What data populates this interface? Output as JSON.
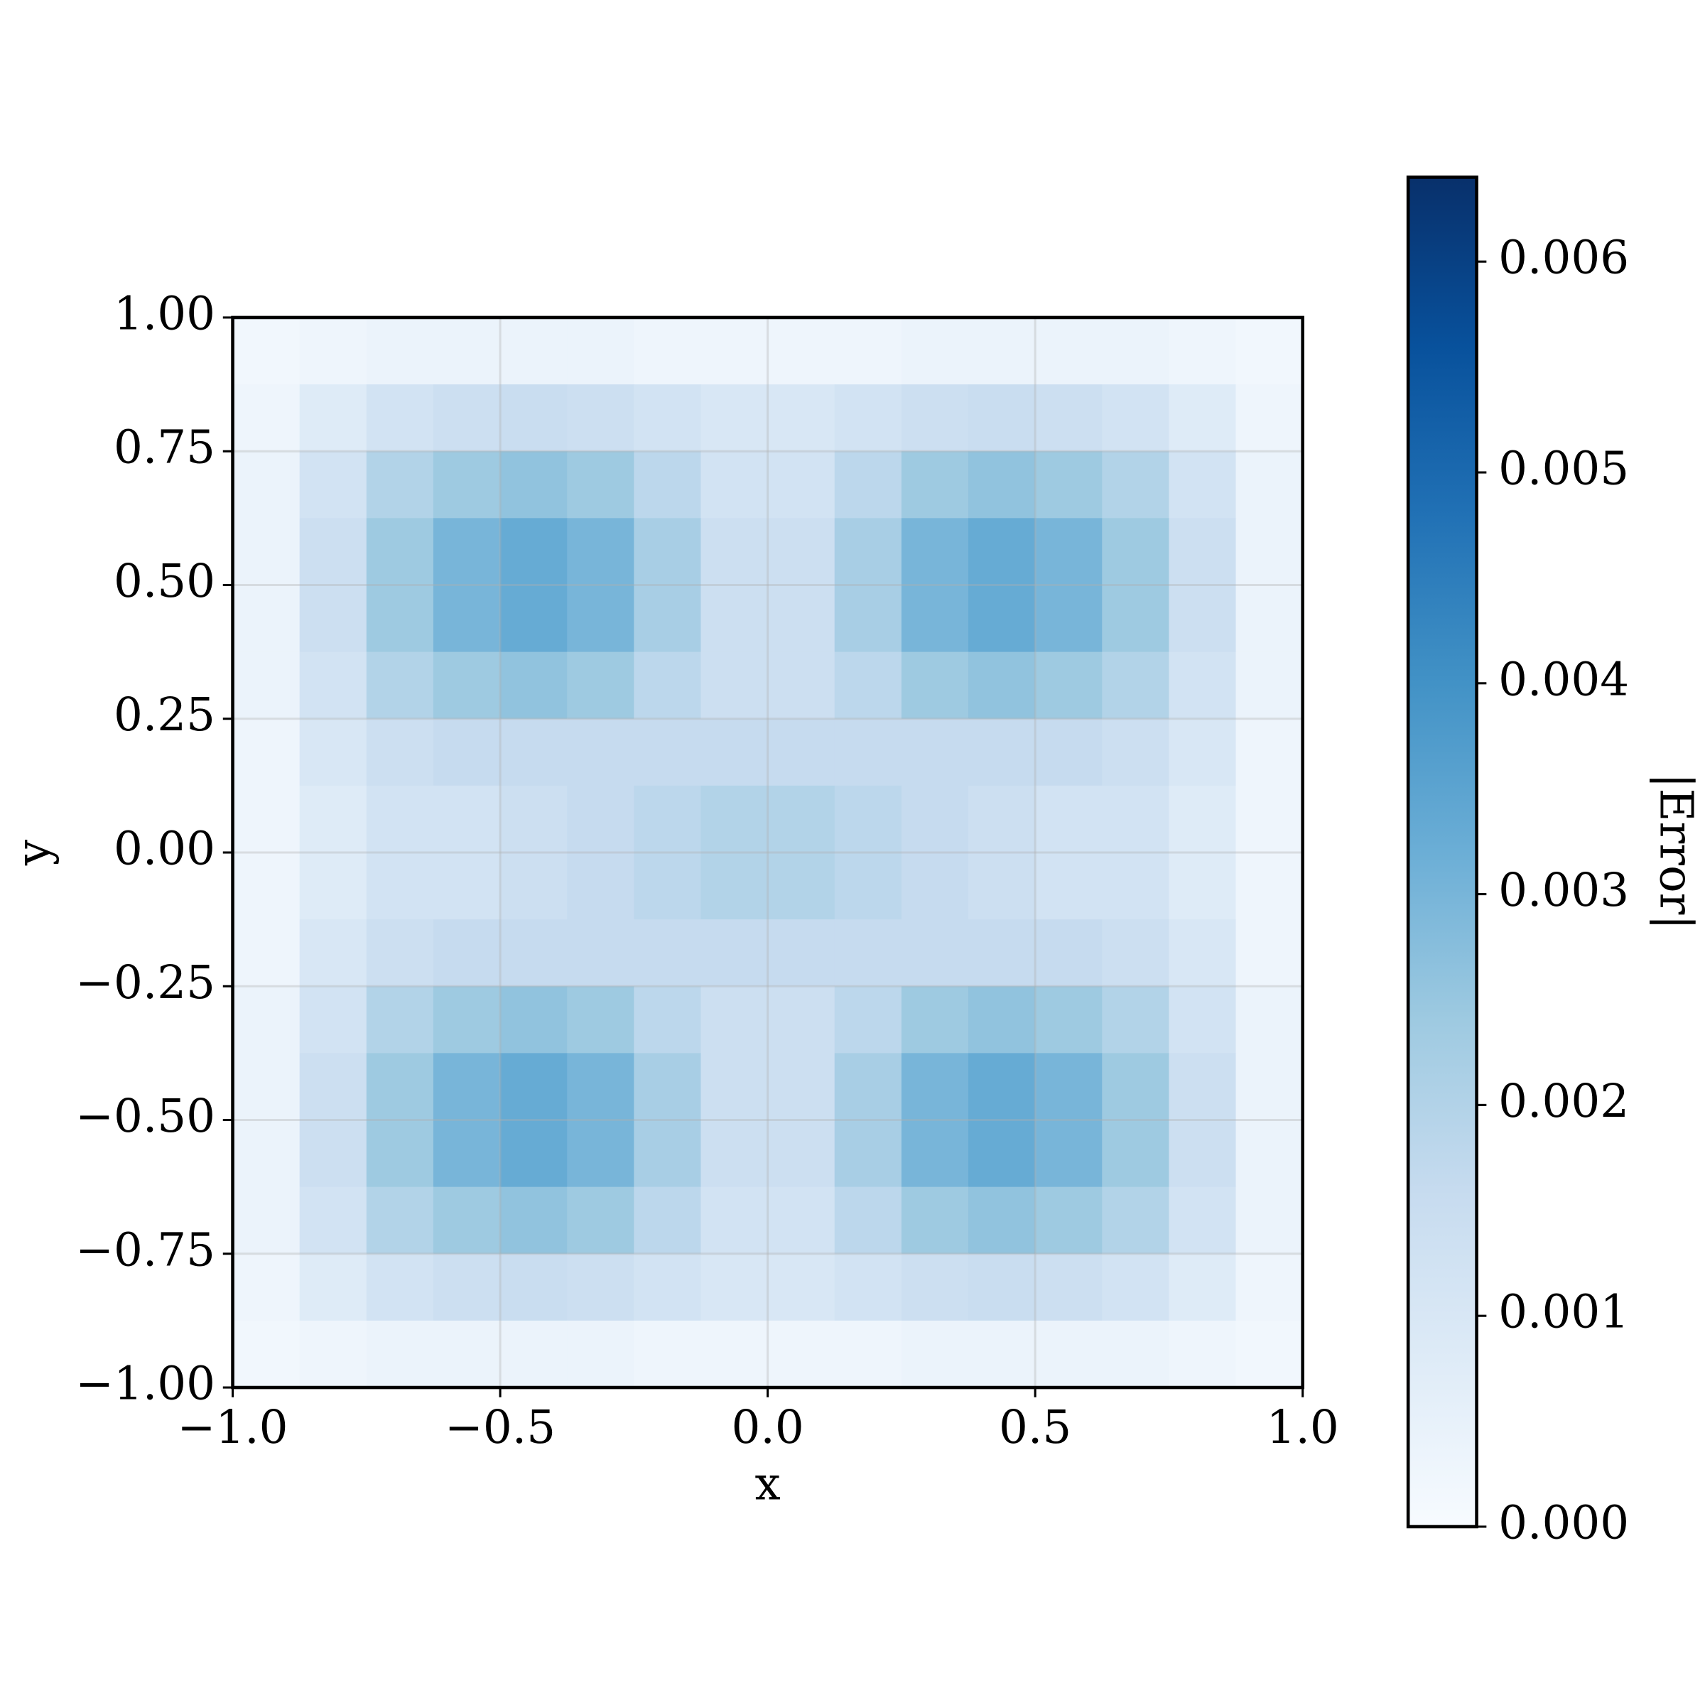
{
  "chart_data": {
    "type": "heatmap",
    "xlabel": "x",
    "ylabel": "y",
    "colorbar_label": "|Error|",
    "colormap": "Blues",
    "grid": true,
    "xlim": [
      -1,
      1
    ],
    "ylim": [
      -1,
      1
    ],
    "clim": [
      0,
      0.0064
    ],
    "xticks": [
      {
        "value": -1,
        "label": "−1.0"
      },
      {
        "value": -0.5,
        "label": "−0.5"
      },
      {
        "value": 0,
        "label": "0.0"
      },
      0.5,
      {
        "value": 1,
        "label": "1.0"
      }
    ],
    "yticks": [
      {
        "value": -1,
        "label": "−1.00"
      },
      {
        "value": -0.75,
        "label": "−0.75"
      },
      {
        "value": -0.5,
        "label": "−0.50"
      },
      {
        "value": -0.25,
        "label": "−0.25"
      },
      {
        "value": 0,
        "label": "0.00"
      },
      0.25,
      {
        "value": 0.5,
        "label": "0.50"
      },
      0.75,
      {
        "value": 1,
        "label": "1.00"
      }
    ],
    "cticks": [
      {
        "value": 0,
        "label": "0.000"
      },
      0.001,
      0.002,
      0.003,
      0.004,
      0.005,
      0.006
    ],
    "z": [
      [
        0.0002,
        0.0003,
        0.0004,
        0.0004,
        0.0004,
        0.0004,
        0.0003,
        0.0003,
        0.0003,
        0.0003,
        0.0004,
        0.0004,
        0.0004,
        0.0004,
        0.0003,
        0.0002
      ],
      [
        0.0003,
        0.0008,
        0.0012,
        0.0014,
        0.0015,
        0.0014,
        0.0012,
        0.001,
        0.001,
        0.0012,
        0.0014,
        0.0015,
        0.0014,
        0.0012,
        0.0008,
        0.0003
      ],
      [
        0.0004,
        0.0012,
        0.002,
        0.0024,
        0.0026,
        0.0024,
        0.0018,
        0.0012,
        0.0012,
        0.0018,
        0.0024,
        0.0026,
        0.0024,
        0.002,
        0.0012,
        0.0004
      ],
      [
        0.0004,
        0.0014,
        0.0024,
        0.003,
        0.0033,
        0.003,
        0.0022,
        0.0014,
        0.0014,
        0.0022,
        0.003,
        0.0033,
        0.003,
        0.0024,
        0.0014,
        0.0004
      ],
      [
        0.0004,
        0.0014,
        0.0024,
        0.003,
        0.0033,
        0.003,
        0.0022,
        0.0014,
        0.0014,
        0.0022,
        0.003,
        0.0033,
        0.003,
        0.0024,
        0.0014,
        0.0004
      ],
      [
        0.0004,
        0.0012,
        0.002,
        0.0024,
        0.0026,
        0.0024,
        0.0018,
        0.0014,
        0.0014,
        0.0018,
        0.0024,
        0.0026,
        0.0024,
        0.002,
        0.0012,
        0.0004
      ],
      [
        0.0003,
        0.001,
        0.0014,
        0.0016,
        0.0016,
        0.0016,
        0.0016,
        0.0016,
        0.0016,
        0.0016,
        0.0016,
        0.0016,
        0.0016,
        0.0014,
        0.001,
        0.0003
      ],
      [
        0.0003,
        0.0008,
        0.0012,
        0.0012,
        0.0014,
        0.0016,
        0.0018,
        0.002,
        0.002,
        0.0018,
        0.0016,
        0.0014,
        0.0012,
        0.0012,
        0.0008,
        0.0003
      ],
      [
        0.0003,
        0.0008,
        0.0012,
        0.0012,
        0.0014,
        0.0016,
        0.0018,
        0.002,
        0.002,
        0.0018,
        0.0016,
        0.0014,
        0.0012,
        0.0012,
        0.0008,
        0.0003
      ],
      [
        0.0003,
        0.001,
        0.0014,
        0.0016,
        0.0016,
        0.0016,
        0.0016,
        0.0016,
        0.0016,
        0.0016,
        0.0016,
        0.0016,
        0.0016,
        0.0014,
        0.001,
        0.0003
      ],
      [
        0.0004,
        0.0012,
        0.002,
        0.0024,
        0.0026,
        0.0024,
        0.0018,
        0.0014,
        0.0014,
        0.0018,
        0.0024,
        0.0026,
        0.0024,
        0.002,
        0.0012,
        0.0004
      ],
      [
        0.0004,
        0.0014,
        0.0024,
        0.003,
        0.0033,
        0.003,
        0.0022,
        0.0014,
        0.0014,
        0.0022,
        0.003,
        0.0033,
        0.003,
        0.0024,
        0.0014,
        0.0004
      ],
      [
        0.0004,
        0.0014,
        0.0024,
        0.003,
        0.0033,
        0.003,
        0.0022,
        0.0014,
        0.0014,
        0.0022,
        0.003,
        0.0033,
        0.003,
        0.0024,
        0.0014,
        0.0004
      ],
      [
        0.0004,
        0.0012,
        0.002,
        0.0024,
        0.0026,
        0.0024,
        0.0018,
        0.0012,
        0.0012,
        0.0018,
        0.0024,
        0.0026,
        0.0024,
        0.002,
        0.0012,
        0.0004
      ],
      [
        0.0003,
        0.0008,
        0.0012,
        0.0014,
        0.0015,
        0.0014,
        0.0012,
        0.001,
        0.001,
        0.0012,
        0.0014,
        0.0015,
        0.0014,
        0.0012,
        0.0008,
        0.0003
      ],
      [
        0.0002,
        0.0003,
        0.0004,
        0.0004,
        0.0004,
        0.0004,
        0.0003,
        0.0003,
        0.0003,
        0.0003,
        0.0004,
        0.0004,
        0.0004,
        0.0004,
        0.0003,
        0.0002
      ]
    ]
  }
}
